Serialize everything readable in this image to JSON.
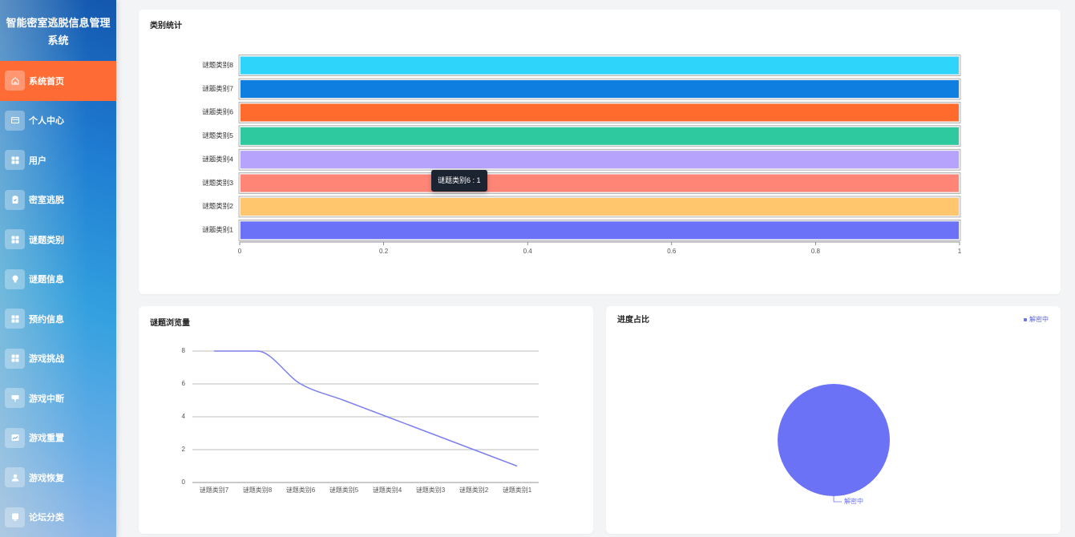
{
  "app": {
    "title": "智能密室逃脱信息管理系统"
  },
  "theme": {
    "sidebar_active": "#ff6b35"
  },
  "sidebar": {
    "items": [
      {
        "label": "系统首页",
        "icon": "home-icon",
        "active": true
      },
      {
        "label": "个人中心",
        "icon": "id-card-icon"
      },
      {
        "label": "用户",
        "icon": "grid-icon"
      },
      {
        "label": "密室逃脱",
        "icon": "clipboard-icon"
      },
      {
        "label": "谜题类别",
        "icon": "grid-icon"
      },
      {
        "label": "谜题信息",
        "icon": "bulb-icon"
      },
      {
        "label": "预约信息",
        "icon": "grid-icon"
      },
      {
        "label": "游戏挑战",
        "icon": "grid-icon"
      },
      {
        "label": "游戏中断",
        "icon": "signpost-icon"
      },
      {
        "label": "游戏重置",
        "icon": "picture-icon"
      },
      {
        "label": "游戏恢复",
        "icon": "user-icon"
      },
      {
        "label": "论坛分类",
        "icon": "note-icon"
      }
    ]
  },
  "chart_data": [
    {
      "type": "bar",
      "orientation": "horizontal",
      "title": "类别统计",
      "categories": [
        "谜题类别1",
        "谜题类别2",
        "谜题类别3",
        "谜题类别4",
        "谜题类别5",
        "谜题类别6",
        "谜题类别7",
        "谜题类别8"
      ],
      "values": [
        1,
        1,
        1,
        1,
        1,
        1,
        1,
        1
      ],
      "colors": [
        "#6b72f7",
        "#ffc66e",
        "#ff8677",
        "#b5a3fc",
        "#2fc99f",
        "#ff6a2d",
        "#0e7ee0",
        "#2fd4fb"
      ],
      "xlim": [
        0,
        1
      ],
      "xticks": [
        0,
        0.2,
        0.4,
        0.6,
        0.8,
        1
      ],
      "grid": false,
      "tooltip": "谜题类别6 : 1"
    },
    {
      "type": "line",
      "title": "谜题浏览量",
      "categories": [
        "谜题类别7",
        "谜题类别8",
        "谜题类别6",
        "谜题类别5",
        "谜题类别4",
        "谜题类别3",
        "谜题类别2",
        "谜题类别1"
      ],
      "values": [
        8,
        8,
        6,
        5,
        4,
        3,
        2,
        1
      ],
      "ylim": [
        0,
        8
      ],
      "yticks": [
        0,
        2,
        4,
        6,
        8
      ],
      "grid": true,
      "smooth": true,
      "color": "#7d80ee"
    },
    {
      "type": "pie",
      "title": "进度占比",
      "slices": [
        {
          "label": "解密中",
          "percent": 100
        }
      ],
      "colors": [
        "#6c72f6"
      ],
      "legend": [
        "解密中"
      ],
      "legend_position": "top-right"
    }
  ]
}
